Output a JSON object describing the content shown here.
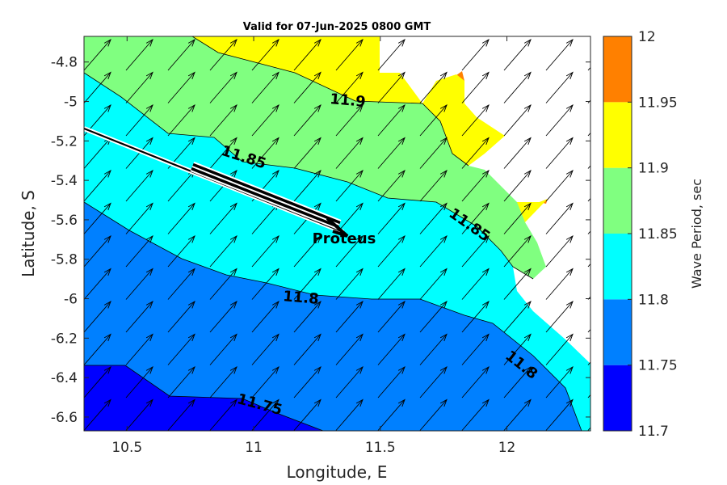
{
  "chart_data": {
    "type": "contour_map",
    "title": "Valid for 07-Jun-2025 0800 GMT",
    "xlabel": "Longitude, E",
    "ylabel": "Latitude, S",
    "xlim": [
      10.33,
      12.33
    ],
    "ylim": [
      -6.67,
      -4.67
    ],
    "x_ticks": [
      10.5,
      11,
      11.5,
      12
    ],
    "x_tick_labels": [
      "10.5",
      "11",
      "11.5",
      "12"
    ],
    "y_ticks": [
      -4.8,
      -5,
      -5.2,
      -5.4,
      -5.6,
      -5.8,
      -6,
      -6.2,
      -6.4,
      -6.6
    ],
    "y_tick_labels": [
      "-4.8",
      "-5",
      "-5.2",
      "-5.4",
      "-5.6",
      "-5.8",
      "-6",
      "-6.2",
      "-6.4",
      "-6.6"
    ],
    "colorbar": {
      "title": "Wave Period, sec",
      "levels": [
        11.7,
        11.75,
        11.8,
        11.85,
        11.9,
        11.95,
        12
      ],
      "level_labels": [
        "11.7",
        "11.75",
        "11.8",
        "11.85",
        "11.9",
        "11.95",
        "12"
      ],
      "colors": [
        "#0000ff",
        "#0080ff",
        "#00ffff",
        "#80ff80",
        "#ffff00",
        "#ff8000"
      ]
    },
    "contour_labels": [
      {
        "text": "11.9",
        "lon": 11.36,
        "lat": -4.99
      },
      {
        "text": "11.85",
        "lon": 10.93,
        "lat": -5.27
      },
      {
        "text": "11.85",
        "lon": 11.82,
        "lat": -5.63
      },
      {
        "text": "11.8",
        "lon": 11.19,
        "lat": -5.99
      },
      {
        "text": "11.8",
        "lon": 12.11,
        "lat": -6.38
      },
      {
        "text": "11.75",
        "lon": 11.02,
        "lat": -6.54
      }
    ],
    "vessel": {
      "name": "Proteus",
      "lon": 11.37,
      "lat": -5.68,
      "track": [
        [
          10.33,
          -5.15
        ],
        [
          11.37,
          -5.68
        ]
      ],
      "heading_from": [
        10.77,
        -5.34
      ]
    },
    "wave_direction_arrows": "northeast-pointing vectors on regular grid"
  }
}
